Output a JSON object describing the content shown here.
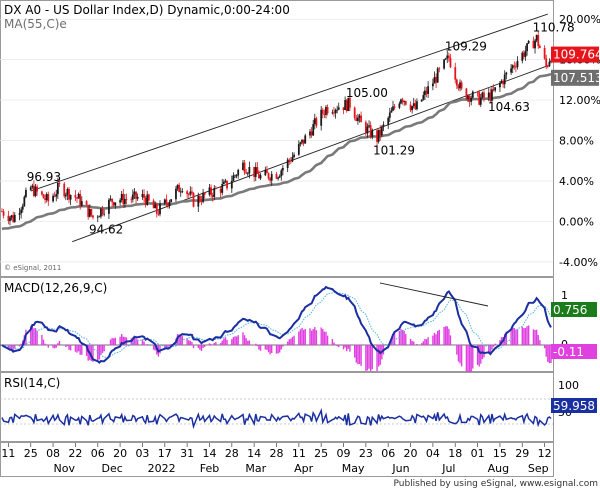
{
  "chart_data": [
    {
      "type": "candlestick",
      "title": "DX A0 - US Dollar Index,D) Dynamic,0:00-24:00",
      "overlay_label": "MA(55,C)e",
      "watermark": "© eSignal, 2011",
      "y_axis": {
        "ticks": [
          "20.00%",
          "16.00%",
          "12.00%",
          "8.00%",
          "4.00%",
          "0.00%",
          "-4.00%"
        ],
        "range_pct": [
          -5.0,
          21.5
        ]
      },
      "price_labels": [
        {
          "text": "109.764",
          "pct": 16.5,
          "color": "#e8141c"
        },
        {
          "text": "107.513",
          "pct": 14.2,
          "color": "#6e6e6e"
        }
      ],
      "annotations": [
        {
          "text": "96.93",
          "date": "2021-10-25",
          "value": 96.93
        },
        {
          "text": "94.62",
          "date": "2021-12-03",
          "value": 94.62
        },
        {
          "text": "105.00",
          "date": "2022-05-13",
          "value": 105.0
        },
        {
          "text": "101.29",
          "date": "2022-05-30",
          "value": 101.29
        },
        {
          "text": "109.29",
          "date": "2022-07-14",
          "value": 109.29
        },
        {
          "text": "104.63",
          "date": "2022-08-10",
          "value": 104.63
        },
        {
          "text": "110.78",
          "date": "2022-09-07",
          "value": 110.78
        }
      ],
      "trendlines": [
        {
          "name": "upper-channel",
          "from": {
            "date": "2021-10-25",
            "pct": 3.0
          },
          "to": {
            "date": "2022-09-14",
            "pct": 20.5
          }
        },
        {
          "name": "lower-channel",
          "from": {
            "date": "2021-11-20",
            "pct": -2.0
          },
          "to": {
            "date": "2022-09-14",
            "pct": 15.4
          }
        }
      ]
    },
    {
      "type": "line",
      "title": "MACD(12,26,9,C)",
      "y_ticks": [
        "1",
        "0"
      ],
      "value_labels": [
        {
          "text": "0.756",
          "color": "#1c7c1c"
        },
        {
          "text": "-0.11",
          "color": "#e040e0"
        }
      ],
      "series": [
        {
          "name": "MACD",
          "color": "#1a2fa0"
        },
        {
          "name": "Signal",
          "color": "#50b4e0"
        },
        {
          "name": "Histogram",
          "color": "#e040e0"
        }
      ]
    },
    {
      "type": "line",
      "title": "RSI(14,C)",
      "y_ticks": [
        "100",
        "50"
      ],
      "value_labels": [
        {
          "text": "59.958",
          "color": "#1a2fa0"
        }
      ]
    },
    {
      "type": "axis",
      "day_ticks": [
        "11",
        "25",
        "08",
        "22",
        "06",
        "20",
        "03",
        "17",
        "31",
        "14",
        "28",
        "14",
        "28",
        "11",
        "25",
        "09",
        "23",
        "06",
        "20",
        "04",
        "18",
        "01",
        "15",
        "29",
        "12"
      ],
      "month_labels": [
        "Nov",
        "Dec",
        "2022",
        "Feb",
        "Mar",
        "Apr",
        "May",
        "Jun",
        "Jul",
        "Aug",
        "Sep"
      ]
    }
  ],
  "footer": "Published by using eSignal, www.esignal.com"
}
